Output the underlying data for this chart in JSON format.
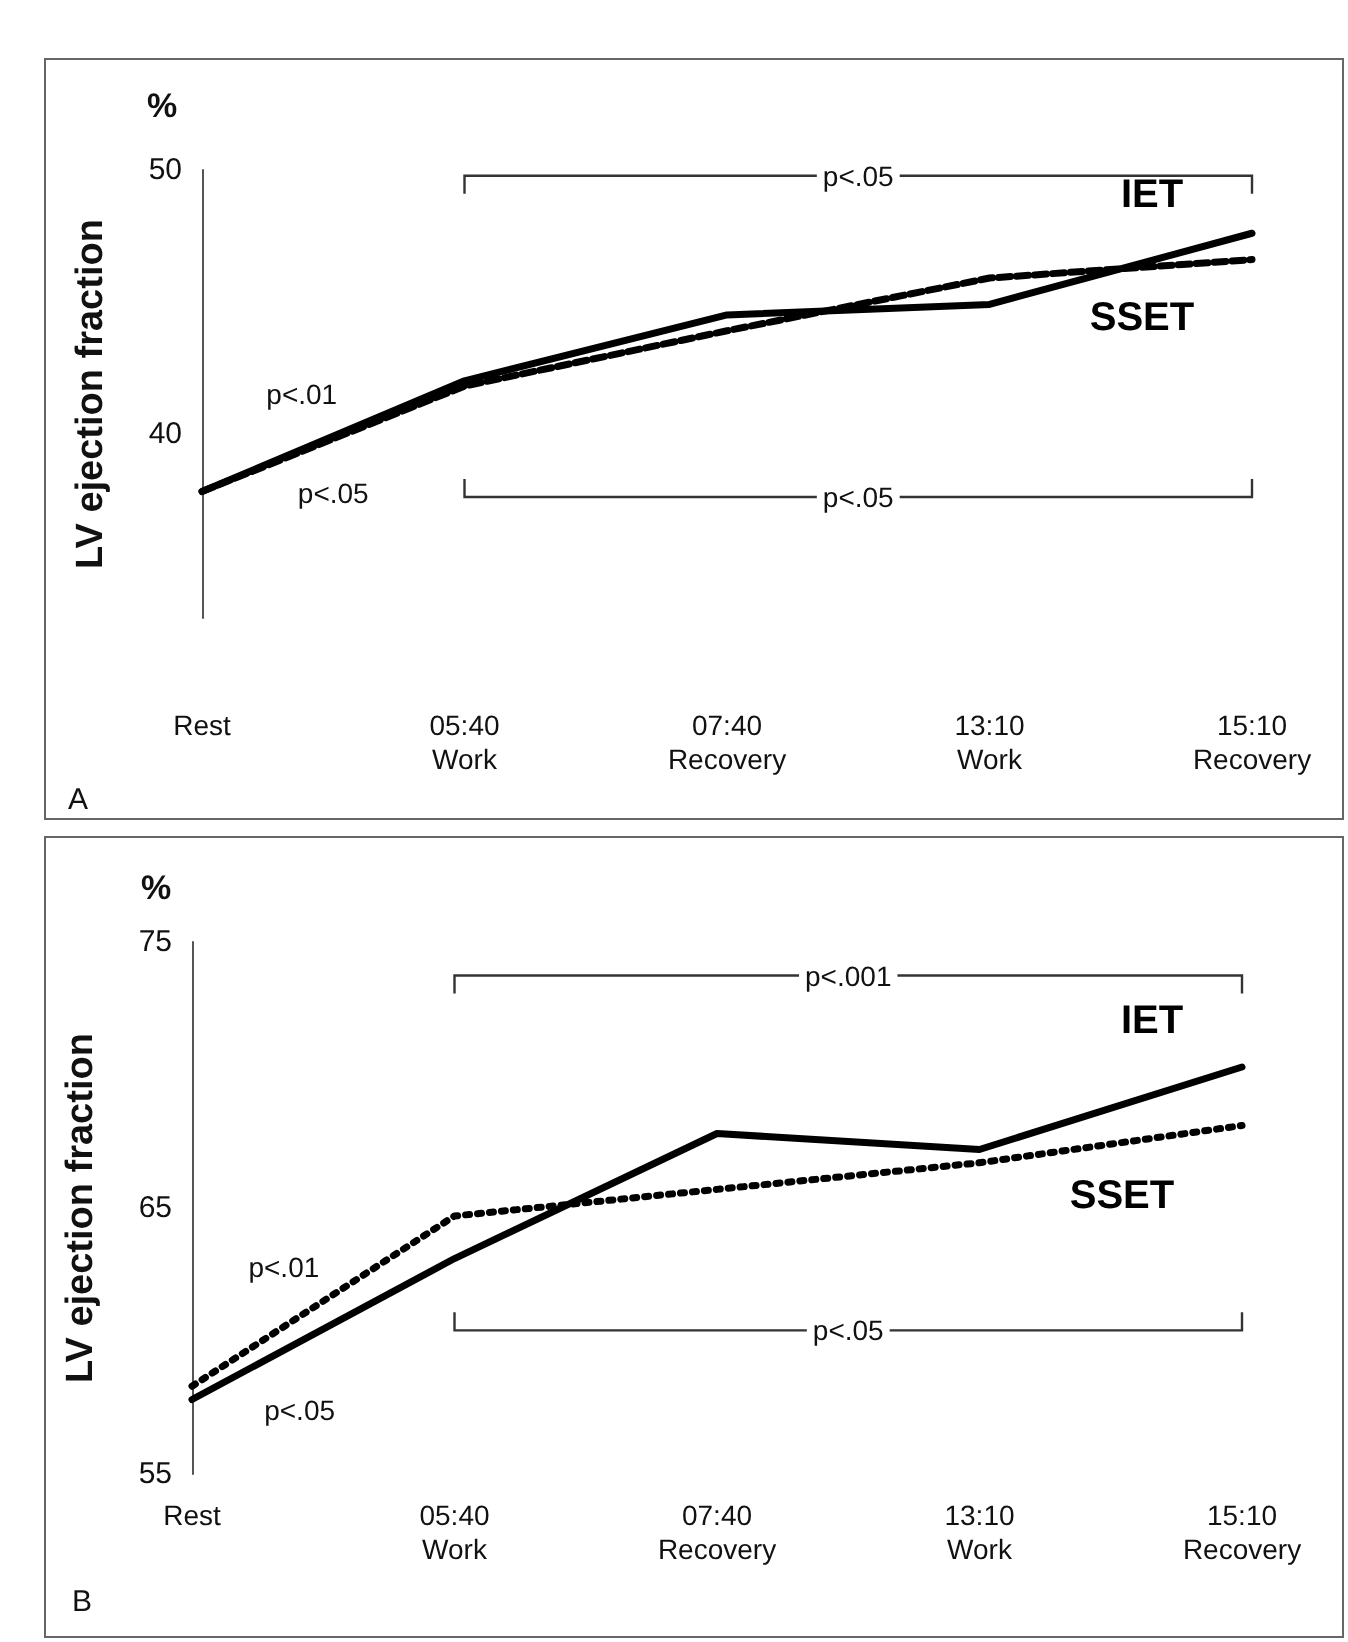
{
  "chart_data": [
    {
      "type": "line",
      "ylabel": "LV ejection fraction",
      "categories": [
        "Rest",
        "05:40\nWork",
        "07:40\nRecovery",
        "13:10\nWork",
        "15:10\nRecovery"
      ],
      "ylim": [
        33,
        50
      ],
      "yticks": [
        40,
        50
      ],
      "series": [
        {
          "name": "IET",
          "color": "#000000",
          "line_style": "solid",
          "values": [
            37.8,
            42.0,
            44.5,
            44.9,
            47.6
          ]
        },
        {
          "name": "SSET",
          "color": "#000000",
          "line_style": "dashed",
          "values": [
            37.8,
            41.8,
            43.9,
            45.9,
            46.6
          ]
        }
      ],
      "annotations": [
        "%",
        "p<.05",
        "p<.05",
        "p<.01",
        "p<.05",
        "A"
      ]
    },
    {
      "type": "line",
      "ylabel": "LV ejection fraction",
      "categories": [
        "Rest",
        "05:40\nWork",
        "07:40\nRecovery",
        "13:10\nWork",
        "15:10\nRecovery"
      ],
      "ylim": [
        55,
        75
      ],
      "yticks": [
        55,
        65,
        75
      ],
      "series": [
        {
          "name": "IET",
          "color": "#000000",
          "line_style": "solid",
          "values": [
            57.8,
            63.1,
            67.8,
            67.2,
            70.3
          ]
        },
        {
          "name": "SSET",
          "color": "#000000",
          "line_style": "dotted",
          "values": [
            58.3,
            64.7,
            65.7,
            66.7,
            68.1
          ]
        }
      ],
      "annotations": [
        "%",
        "p<.001",
        "p<.05",
        "p<.01",
        "p<.05",
        "B"
      ]
    }
  ]
}
